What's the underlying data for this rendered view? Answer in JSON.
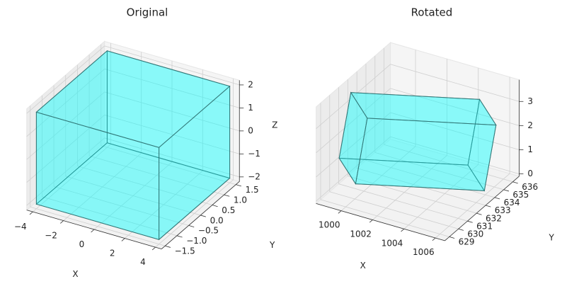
{
  "chart_data": [
    {
      "type": "3d",
      "title": "Original",
      "xlabel": "X",
      "ylabel": "Y",
      "zlabel": "Z",
      "xlim": [
        -4.4,
        4.4
      ],
      "ylim": [
        -1.65,
        1.65
      ],
      "zlim": [
        -2.2,
        2.2
      ],
      "xticks": [
        {
          "value": -4,
          "label": "−4"
        },
        {
          "value": -2,
          "label": "−2"
        },
        0,
        2,
        4
      ],
      "yticks": [
        {
          "value": -1.5,
          "label": "−1.5"
        },
        {
          "value": -1.0,
          "label": "−1.0"
        },
        {
          "value": -0.5,
          "label": "−0.5"
        },
        {
          "value": 0.0,
          "label": "0.0"
        },
        0.5,
        {
          "value": 1.0,
          "label": "1.0"
        },
        1.5
      ],
      "zticks": [
        {
          "value": -2,
          "label": "−2"
        },
        {
          "value": -1,
          "label": "−1"
        },
        0,
        1,
        2
      ],
      "color": "#00ffff",
      "edgecolor": "#2f6f6f",
      "x": [
        -4,
        4,
        -4,
        4,
        -4,
        4,
        -4,
        4
      ],
      "y": [
        -1.5,
        -1.5,
        1.5,
        1.5,
        -1.5,
        -1.5,
        1.5,
        1.5
      ],
      "z": [
        -2,
        -2,
        -2,
        -2,
        2,
        2,
        2,
        2
      ]
    },
    {
      "type": "3d",
      "title": "Rotated",
      "xlabel": "X",
      "ylabel": "Y",
      "xlim": [
        998.4,
        1006.6
      ],
      "ylim": [
        628.5,
        636.7
      ],
      "zlim": [
        -0.1,
        3.9
      ],
      "xticks": [
        1000,
        1002,
        1004,
        1006
      ],
      "yticks": [
        629,
        630,
        631,
        632,
        633,
        634,
        635,
        636
      ],
      "zticks": [
        0,
        1,
        2,
        3
      ],
      "color": "#00ffff",
      "edgecolor": "#2f6f6f",
      "x": [
        998.6,
        1003.8,
        1000.8,
        1006.0,
        999.0,
        1004.2,
        1001.2,
        1006.4
      ],
      "y": [
        630.7,
        635.9,
        628.7,
        633.9,
        631.3,
        636.5,
        629.3,
        634.5
      ],
      "z": [
        1.1,
        0.1,
        1.1,
        0.1,
        3.7,
        2.7,
        3.7,
        2.7
      ]
    }
  ]
}
